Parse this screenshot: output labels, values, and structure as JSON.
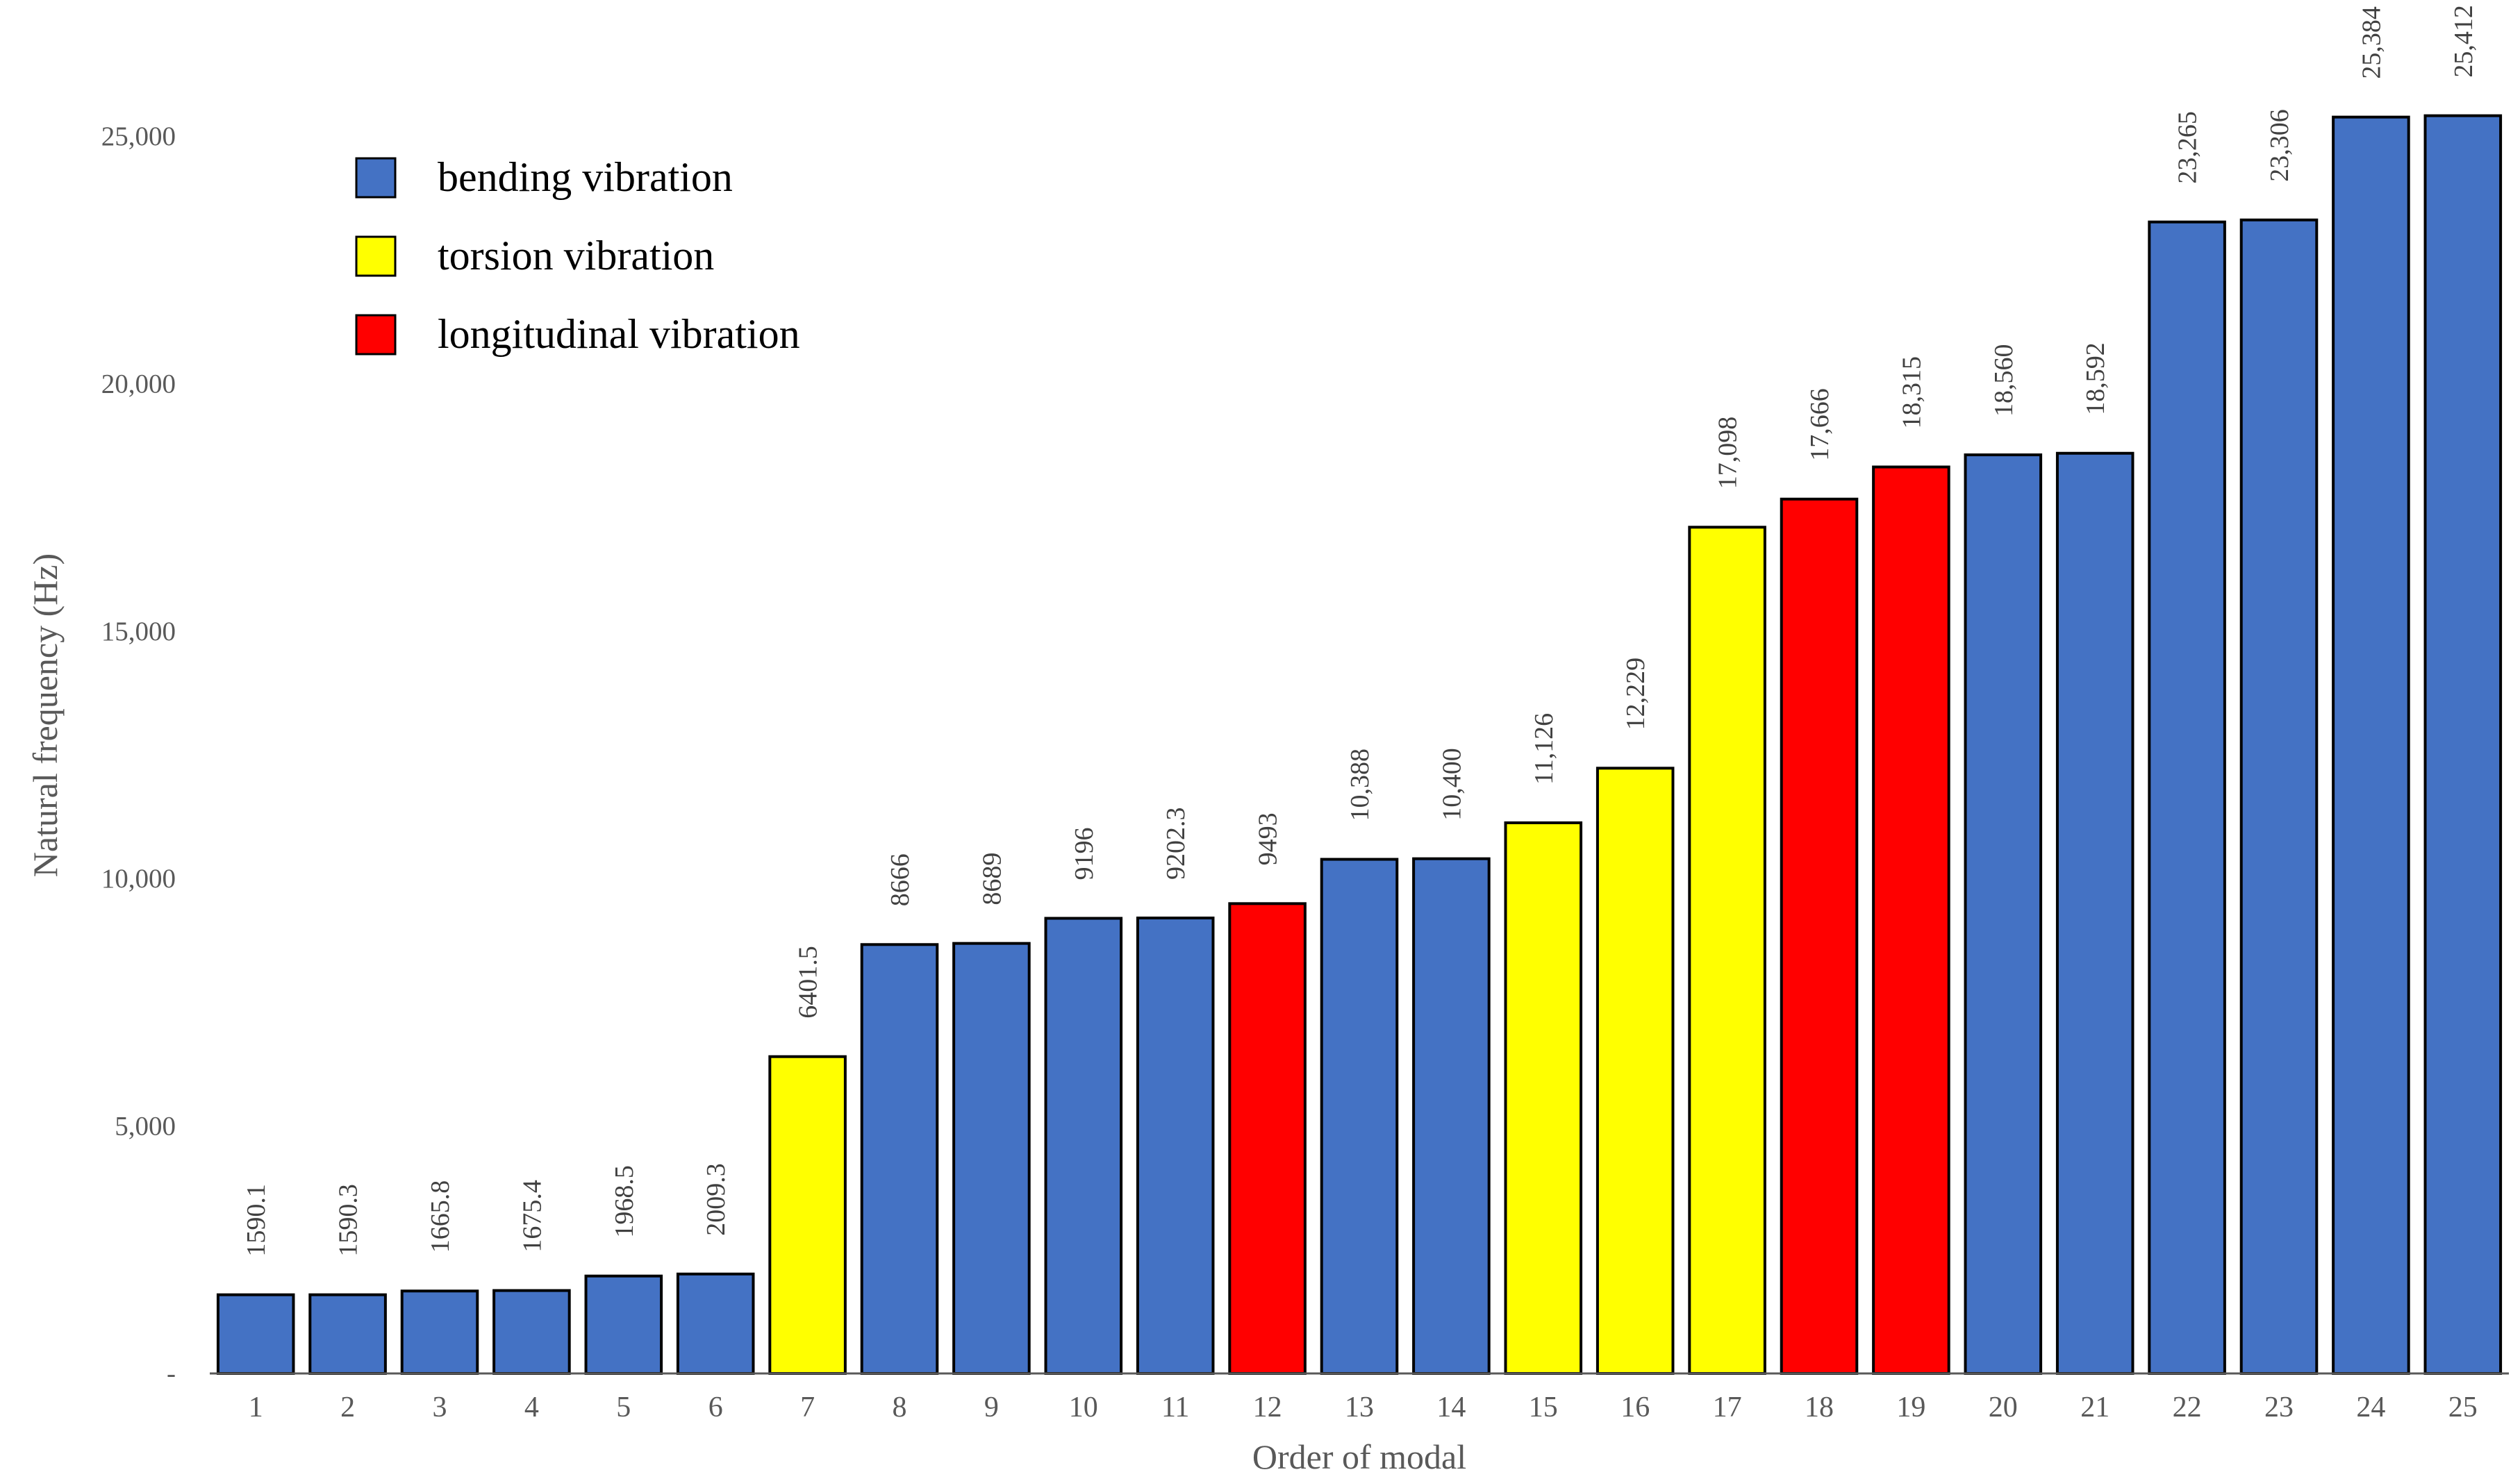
{
  "chart_data": {
    "type": "bar",
    "title": "",
    "xlabel": "Order of modal",
    "ylabel": "Natural frequency (Hz)",
    "ylim": [
      0,
      25000
    ],
    "y_ticks": [
      0,
      5000,
      10000,
      15000,
      20000,
      25000
    ],
    "y_tick_labels": [
      "-",
      "5,000",
      "10,000",
      "15,000",
      "20,000",
      "25,000"
    ],
    "grid": false,
    "legend_position": "top-left",
    "categories": [
      "1",
      "2",
      "3",
      "4",
      "5",
      "6",
      "7",
      "8",
      "9",
      "10",
      "11",
      "12",
      "13",
      "14",
      "15",
      "16",
      "17",
      "18",
      "19",
      "20",
      "21",
      "22",
      "23",
      "24",
      "25"
    ],
    "values": [
      1590.1,
      1590.3,
      1665.8,
      1675.4,
      1968.5,
      2009.3,
      6401.5,
      8666,
      8689,
      9196,
      9202.3,
      9493,
      10388,
      10400,
      11126,
      12229,
      17098,
      17666,
      18315,
      18560,
      18592,
      23265,
      23306,
      25384,
      25412
    ],
    "value_labels": [
      "1590.1",
      "1590.3",
      "1665.8",
      "1675.4",
      "1968.5",
      "2009.3",
      "6401.5",
      "8666",
      "8689",
      "9196",
      "9202.3",
      "9493",
      "10,388",
      "10,400",
      "11,126",
      "12,229",
      "17,098",
      "17,666",
      "18,315",
      "18,560",
      "18,592",
      "23,265",
      "23,306",
      "25,384",
      "25,412"
    ],
    "types": [
      "bending",
      "bending",
      "bending",
      "bending",
      "bending",
      "bending",
      "torsion",
      "bending",
      "bending",
      "bending",
      "bending",
      "longitudinal",
      "bending",
      "bending",
      "torsion",
      "torsion",
      "torsion",
      "longitudinal",
      "longitudinal",
      "bending",
      "bending",
      "bending",
      "bending",
      "bending",
      "bending"
    ],
    "legend": [
      {
        "key": "bending",
        "label": "bending vibration",
        "color": "#4472C4"
      },
      {
        "key": "torsion",
        "label": "torsion vibration",
        "color": "#FFFF00"
      },
      {
        "key": "longitudinal",
        "label": "longitudinal vibration",
        "color": "#FF0000"
      }
    ]
  },
  "colors": {
    "axis": "#595959",
    "bar_outline": "#000000"
  }
}
